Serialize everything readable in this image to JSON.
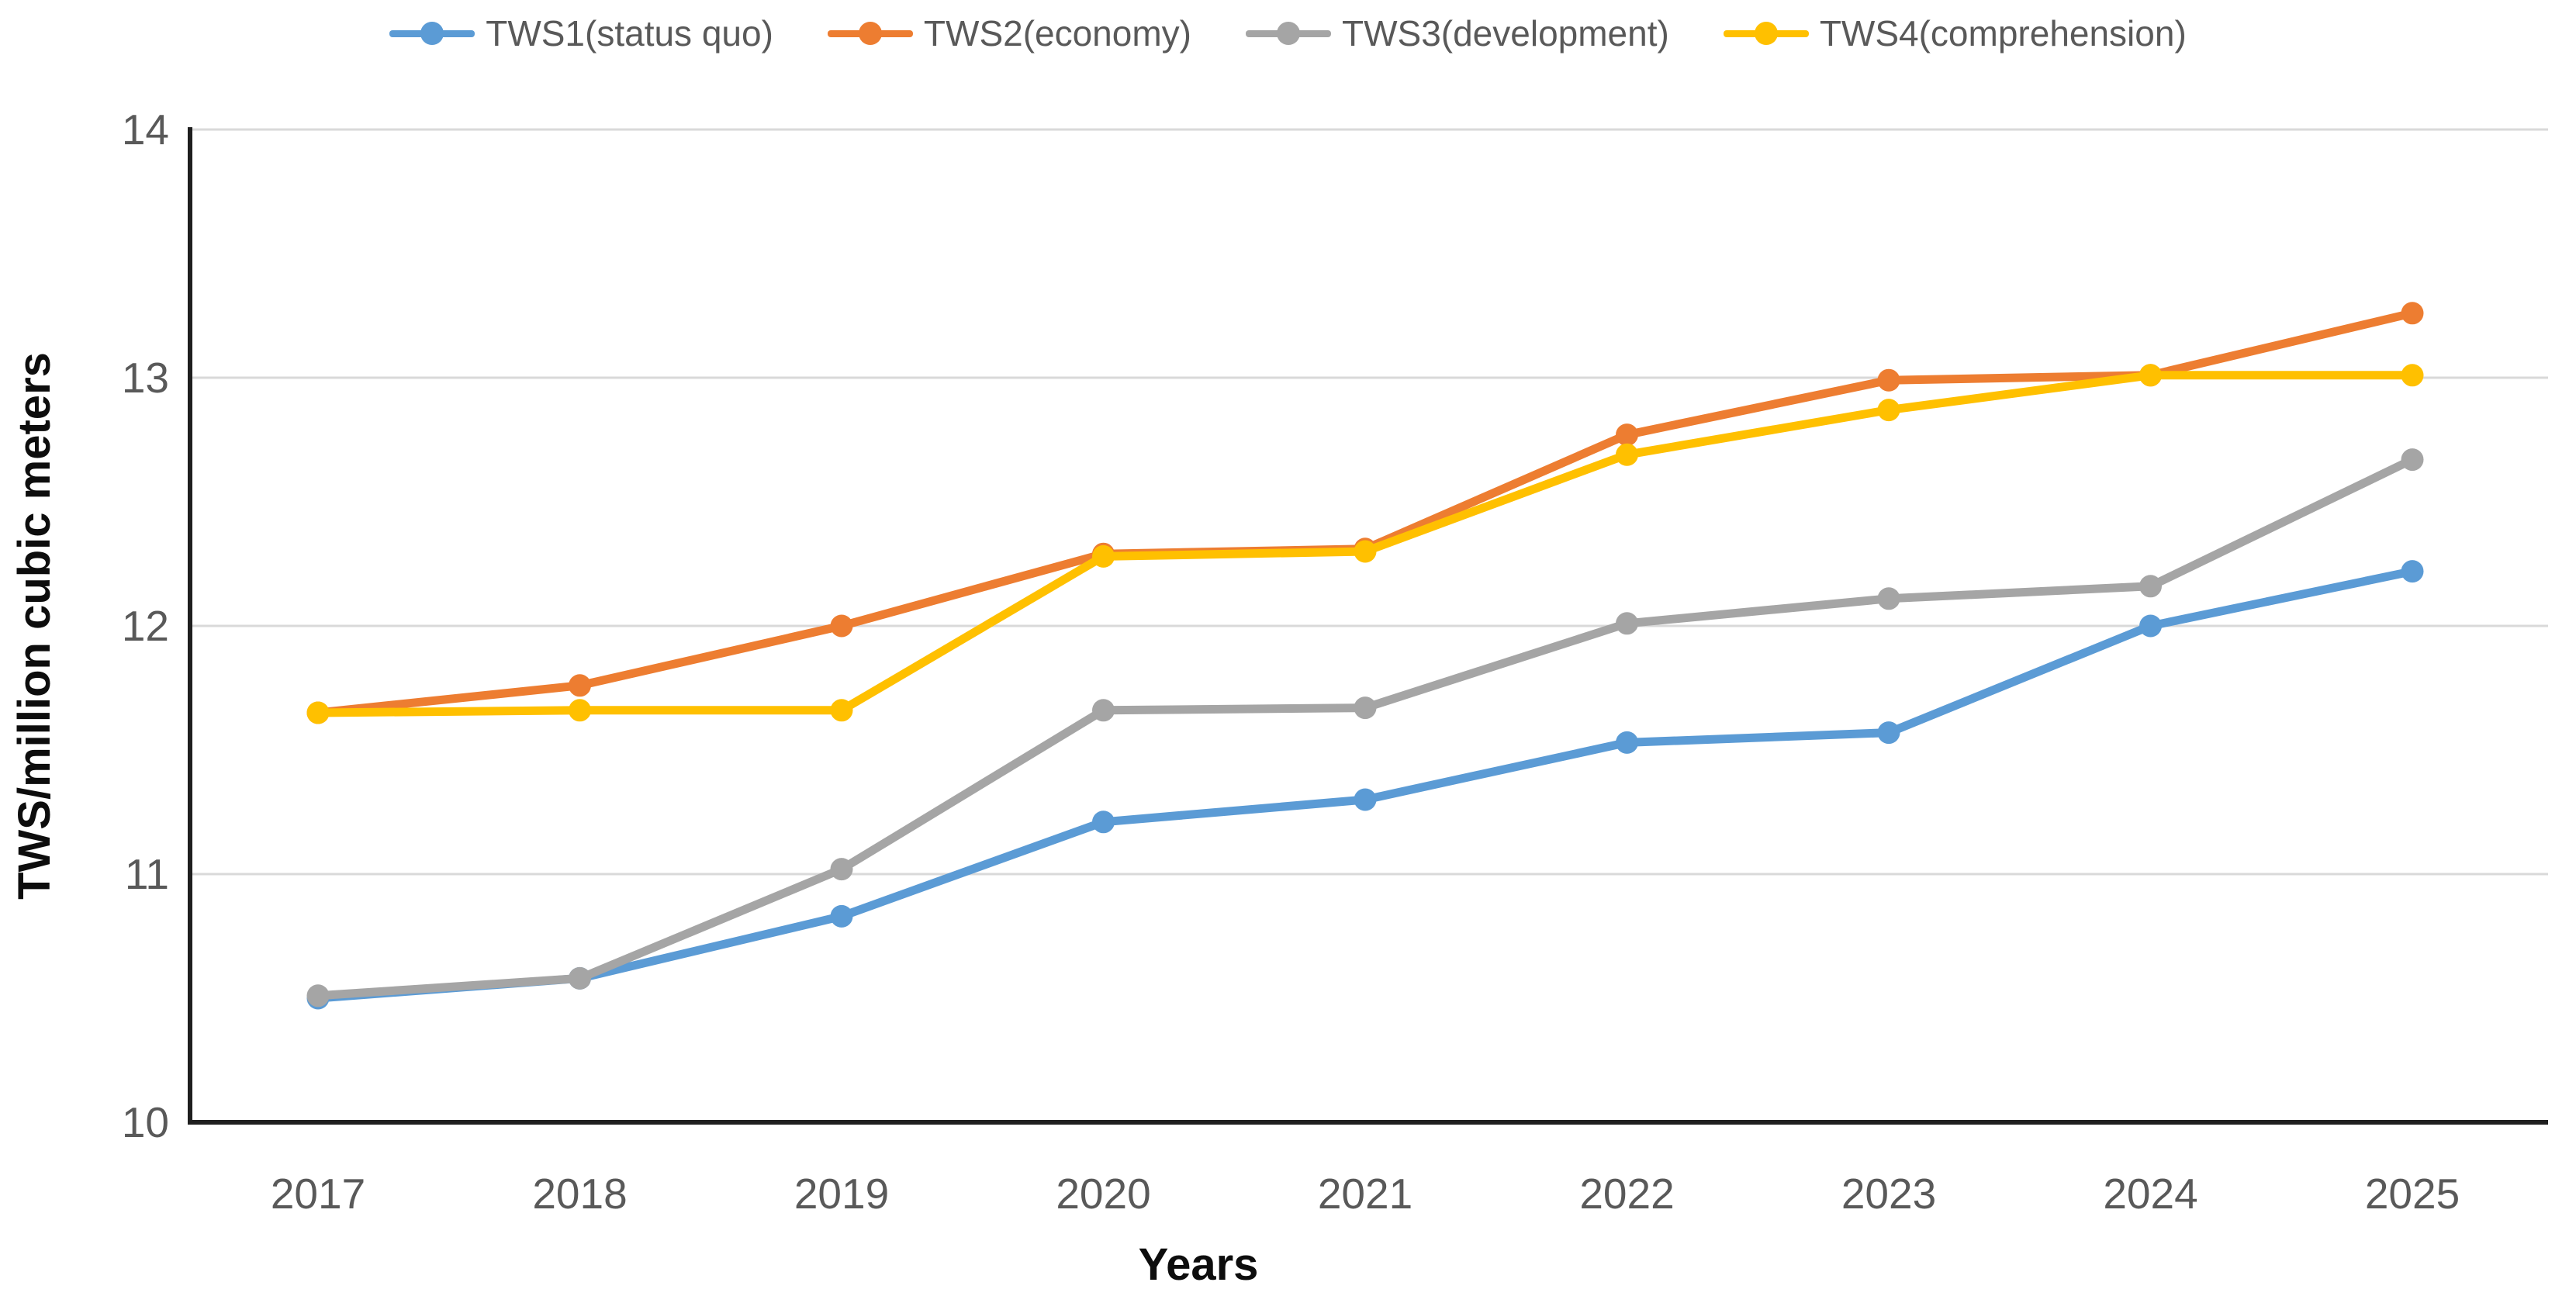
{
  "chart_data": {
    "type": "line",
    "title": "",
    "xlabel": "Years",
    "ylabel": "TWS/million cubic meters",
    "x": [
      2017,
      2018,
      2019,
      2020,
      2021,
      2022,
      2023,
      2024,
      2025
    ],
    "ylim": [
      10,
      14
    ],
    "yticks": [
      10,
      11,
      12,
      13,
      14
    ],
    "grid": true,
    "legend_position": "top",
    "marker": "circle",
    "series": [
      {
        "name": "TWS1(status quo)",
        "color": "#5B9BD5",
        "values": [
          10.5,
          10.58,
          10.83,
          11.21,
          11.3,
          11.53,
          11.57,
          12.0,
          12.22
        ]
      },
      {
        "name": "TWS2(economy)",
        "color": "#ED7D31",
        "values": [
          11.65,
          11.76,
          12.0,
          12.29,
          12.31,
          12.77,
          12.99,
          13.01,
          13.26
        ]
      },
      {
        "name": "TWS3(development)",
        "color": "#A5A5A5",
        "values": [
          10.51,
          10.58,
          11.02,
          11.66,
          11.67,
          12.01,
          12.11,
          12.16,
          12.67
        ]
      },
      {
        "name": "TWS4(comprehension)",
        "color": "#FFC000",
        "values": [
          11.65,
          11.66,
          11.66,
          12.28,
          12.3,
          12.69,
          12.87,
          13.01,
          13.01
        ]
      }
    ],
    "colors": {
      "gridline": "#D9D9D9",
      "axis_line": "#1f1f1f",
      "tick_text": "#595959",
      "axis_title_text": "#0d0d0d",
      "background": "#ffffff"
    }
  }
}
